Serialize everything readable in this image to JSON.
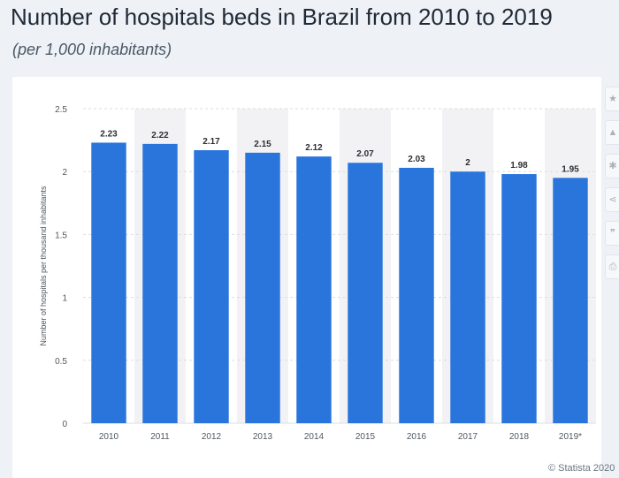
{
  "header": {
    "title": "Number of hospitals beds in Brazil from 2010 to 2019",
    "subtitle": "(per 1,000 inhabitants)"
  },
  "footer": {
    "credit": "© Statista 2020"
  },
  "toolbar": {
    "tools": [
      {
        "name": "star-icon",
        "glyph": "★"
      },
      {
        "name": "bell-icon",
        "glyph": "▲"
      },
      {
        "name": "gear-icon",
        "glyph": "✱"
      },
      {
        "name": "share-icon",
        "glyph": "⋖"
      },
      {
        "name": "quote-icon",
        "glyph": "❞"
      },
      {
        "name": "print-icon",
        "glyph": "⎙"
      }
    ]
  },
  "colors": {
    "bar": "#2a75dc",
    "band": "#f2f2f4",
    "grid": "#d9dde2",
    "label": "#2b2f33",
    "tick": "#4f5862"
  },
  "chart_data": {
    "type": "bar",
    "title": "Number of hospitals beds in Brazil from 2010 to 2019",
    "subtitle": "(per 1,000 inhabitants)",
    "xlabel": "",
    "ylabel": "Number of hospitals per thousand inhabitants",
    "categories": [
      "2010",
      "2011",
      "2012",
      "2013",
      "2014",
      "2015",
      "2016",
      "2017",
      "2018",
      "2019*"
    ],
    "values": [
      2.23,
      2.22,
      2.17,
      2.15,
      2.12,
      2.07,
      2.03,
      2,
      1.98,
      1.95
    ],
    "value_labels": [
      "2.23",
      "2.22",
      "2.17",
      "2.15",
      "2.12",
      "2.07",
      "2.03",
      "2",
      "1.98",
      "1.95"
    ],
    "ylim": [
      0,
      2.5
    ],
    "yticks": [
      0,
      0.5,
      1,
      1.5,
      2,
      2.5
    ],
    "ytick_labels": [
      "0",
      "0.5",
      "1",
      "1.5",
      "2",
      "2.5"
    ],
    "grid": true,
    "legend": "none"
  }
}
